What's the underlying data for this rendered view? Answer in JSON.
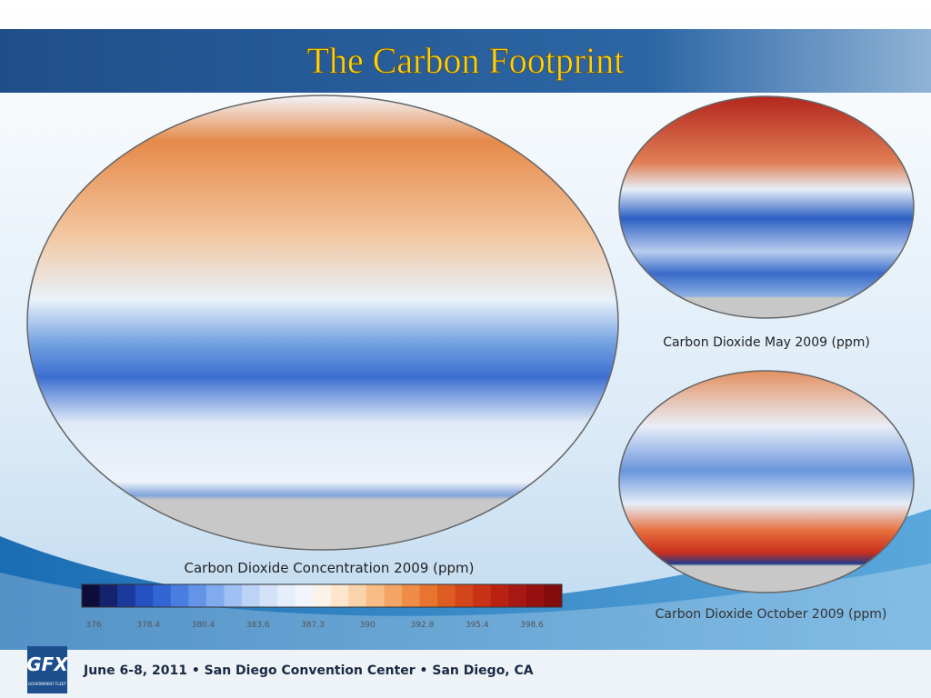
{
  "header": {
    "title": "The Carbon Footprint"
  },
  "main_map": {
    "caption": "Carbon Dioxide Concentration 2009 (ppm)",
    "colorbar_labels": [
      "376",
      "378.4",
      "380.4",
      "383.6",
      "387.3",
      "390",
      "392.8",
      "395.4",
      "398.6"
    ]
  },
  "side_maps": [
    {
      "caption": "Carbon Dioxide May 2009 (ppm)"
    },
    {
      "caption": "Carbon Dioxide October 2009 (ppm)"
    }
  ],
  "footer": {
    "logo": "GFX",
    "logo_sub": "GOVERNMENT FLEET",
    "text": "June 6-8, 2011 • San Diego Convention Center • San Diego, CA"
  }
}
